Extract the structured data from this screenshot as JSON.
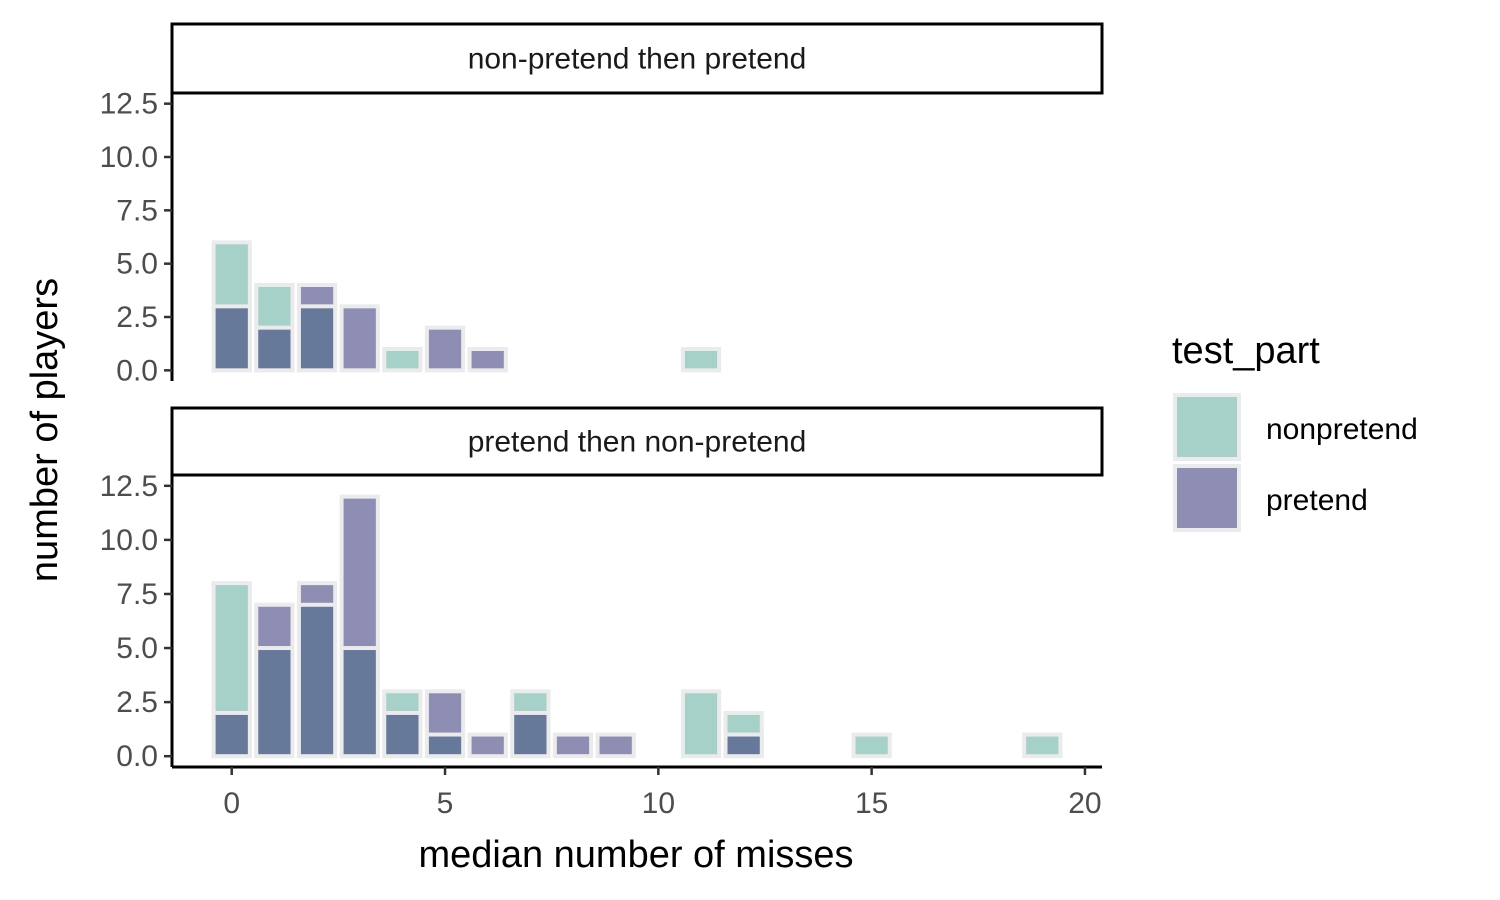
{
  "chart_data": {
    "type": "bar",
    "title": "",
    "xlabel": "median number of misses",
    "ylabel": "number of players",
    "xlim": [
      -1.4,
      20.4
    ],
    "ylim": [
      -0.5,
      13.0
    ],
    "x_ticks": [
      0,
      5,
      10,
      15,
      20
    ],
    "y_ticks": [
      0.0,
      2.5,
      5.0,
      7.5,
      10.0,
      12.5
    ],
    "y_tick_labels": [
      "0.0",
      "2.5",
      "5.0",
      "7.5",
      "10.0",
      "12.5"
    ],
    "bar_width": 0.85,
    "grid": false,
    "legend": {
      "title": "test_part",
      "position": "right",
      "entries": [
        {
          "label": "nonpretend",
          "color": "#a6d1c8"
        },
        {
          "label": "pretend",
          "color": "#8e8db3"
        }
      ]
    },
    "colors": {
      "nonpretend": "#a6d1c8",
      "pretend": "#8e8db3",
      "overlap": "#66799b",
      "bar_outline": "#ebebeb"
    },
    "panels": [
      {
        "strip_label": "non-pretend then pretend",
        "series": [
          {
            "name": "nonpretend",
            "x": [
              0,
              1,
              2,
              4,
              11
            ],
            "values": [
              6,
              4,
              3,
              1,
              1
            ]
          },
          {
            "name": "pretend",
            "x": [
              0,
              1,
              2,
              3,
              5,
              6
            ],
            "values": [
              3,
              2,
              4,
              3,
              2,
              1
            ]
          }
        ]
      },
      {
        "strip_label": "pretend then non-pretend",
        "series": [
          {
            "name": "nonpretend",
            "x": [
              0,
              1,
              2,
              3,
              4,
              5,
              7,
              11,
              12,
              15,
              19
            ],
            "values": [
              8,
              5,
              7,
              5,
              3,
              1,
              3,
              3,
              2,
              1,
              1
            ]
          },
          {
            "name": "pretend",
            "x": [
              0,
              1,
              2,
              3,
              4,
              5,
              6,
              7,
              8,
              9,
              12
            ],
            "values": [
              2,
              7,
              8,
              12,
              2,
              3,
              1,
              2,
              1,
              1,
              1
            ]
          }
        ]
      }
    ]
  }
}
